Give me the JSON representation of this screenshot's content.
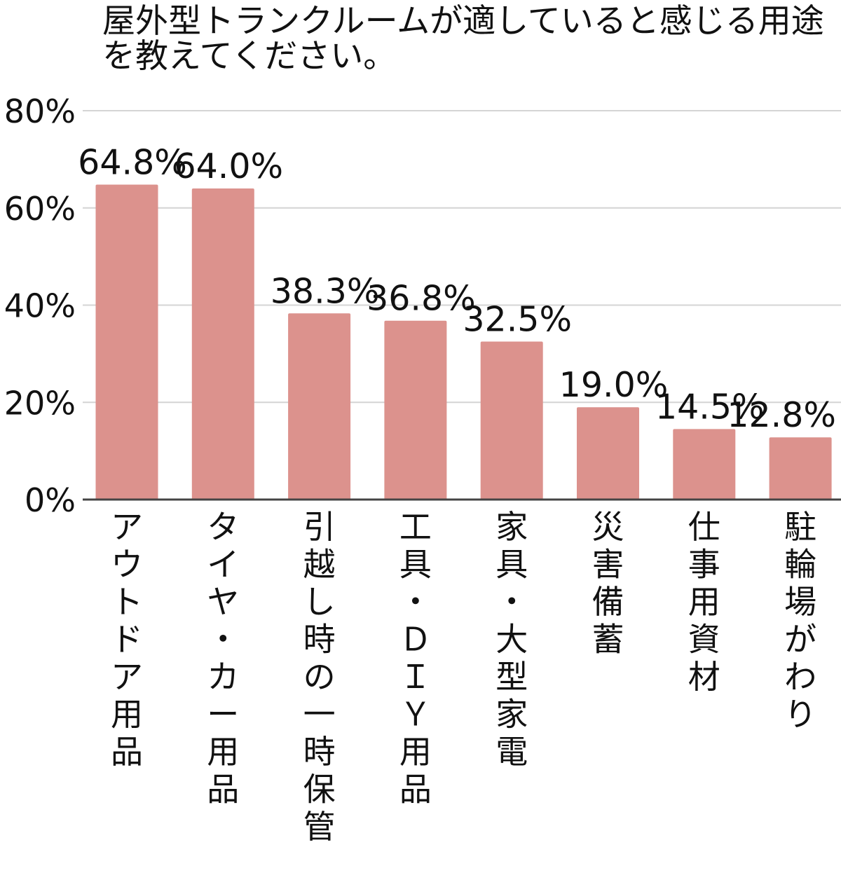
{
  "chart_data": {
    "type": "bar",
    "title": "屋外型トランクルームが適していると感じる用途を教えてください。",
    "categories": [
      "アウトドア用品",
      "タイヤ・カー用品",
      "引越し時の一時保管",
      "工具・ＤＩＹ用品",
      "家具・大型家電",
      "災害備蓄",
      "仕事用資材",
      "駐輪場がわり"
    ],
    "values": [
      64.8,
      64.0,
      38.3,
      36.8,
      32.5,
      19.0,
      14.5,
      12.8
    ],
    "data_labels": [
      "64.8%",
      "64.0%",
      "38.3%",
      "36.8%",
      "32.5%",
      "19.0%",
      "14.5%",
      "12.8%"
    ],
    "ylim": [
      0,
      80
    ],
    "yticks": [
      "0%",
      "20%",
      "40%",
      "60%",
      "80%"
    ],
    "xlabel": "",
    "ylabel": "",
    "grid": true,
    "bar_color": "#dc928d",
    "grid_color": "#d4d4d4",
    "axis_color": "#444444",
    "text_color": "#111111"
  }
}
